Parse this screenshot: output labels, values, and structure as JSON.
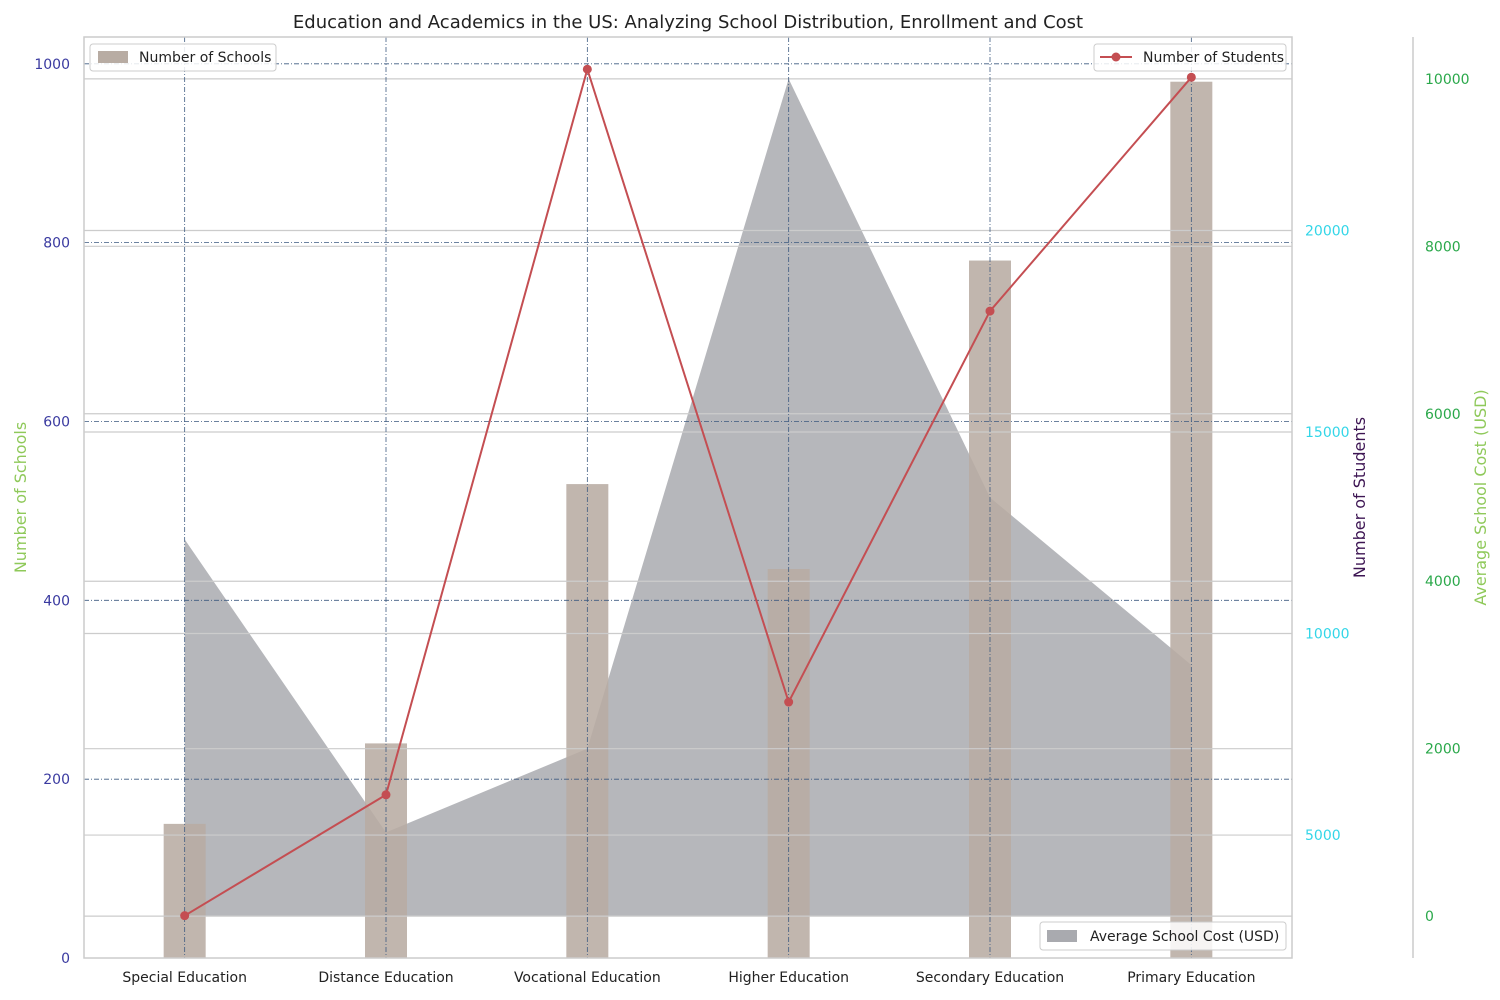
{
  "chart_data": {
    "type": "bar",
    "title": "Education and Academics in the US: Analyzing School Distribution, Enrollment and Cost",
    "categories": [
      "Special Education",
      "Distance Education",
      "Vocational Education",
      "Higher Education",
      "Secondary Education",
      "Primary Education"
    ],
    "series": [
      {
        "name": "Number of Schools",
        "type": "bar",
        "axis": "left",
        "color": "#b8aca3",
        "values": [
          150,
          240,
          530,
          435,
          780,
          980
        ]
      },
      {
        "name": "Number of Students",
        "type": "line",
        "axis": "right",
        "color": "#c44e52",
        "values": [
          3000,
          6000,
          24000,
          8300,
          18000,
          23800
        ]
      },
      {
        "name": "Average School Cost (USD)",
        "type": "area",
        "axis": "right-outer",
        "color": "#a9aaaf",
        "values": [
          4500,
          1000,
          2000,
          10000,
          5000,
          3000
        ]
      }
    ],
    "axes": {
      "left": {
        "label": "Number of Schools",
        "label_color": "#8fc95a",
        "tick_color": "#3a3aa0",
        "ylim": [
          0,
          1030
        ],
        "ticks": [
          0,
          200,
          400,
          600,
          800,
          1000
        ]
      },
      "right": {
        "label": "Number of Students",
        "label_color": "#3d1553",
        "tick_color": "#33d6e8",
        "ylim": [
          1950,
          24800
        ],
        "ticks": [
          5000,
          10000,
          15000,
          20000
        ]
      },
      "right_outer": {
        "label": "Average School Cost (USD)",
        "label_color": "#8fc95a",
        "tick_color": "#2aa84a",
        "ylim": [
          -500,
          10500
        ],
        "ticks": [
          0,
          2000,
          4000,
          6000,
          8000,
          10000
        ]
      }
    },
    "grid": true,
    "legends": {
      "bars": "top-left",
      "line": "top-right",
      "area": "bottom-right"
    }
  }
}
